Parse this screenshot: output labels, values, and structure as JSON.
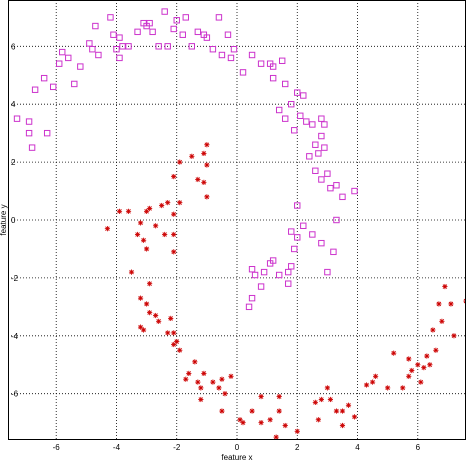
{
  "chart_data": {
    "type": "scatter",
    "xlabel": "feature x",
    "ylabel": "feature y",
    "xlim": [
      -7.6,
      7.6
    ],
    "ylim": [
      -7.6,
      7.6
    ],
    "grid": true,
    "x_ticks": [
      -6,
      -4,
      -2,
      0,
      2,
      4,
      6
    ],
    "y_ticks": [
      -6,
      -4,
      -2,
      0,
      2,
      4,
      6
    ],
    "series": [
      {
        "marker": "square",
        "color": "#cc33cc",
        "points": [
          [
            -7.3,
            3.5
          ],
          [
            -6.9,
            3.4
          ],
          [
            -6.9,
            3.0
          ],
          [
            -6.8,
            2.5
          ],
          [
            -6.3,
            3.0
          ],
          [
            -6.7,
            4.5
          ],
          [
            -6.4,
            4.9
          ],
          [
            -6.1,
            4.6
          ],
          [
            -5.9,
            5.4
          ],
          [
            -5.8,
            5.8
          ],
          [
            -5.6,
            5.6
          ],
          [
            -5.4,
            4.7
          ],
          [
            -5.2,
            5.3
          ],
          [
            -4.9,
            6.1
          ],
          [
            -4.8,
            5.9
          ],
          [
            -4.7,
            6.7
          ],
          [
            -4.6,
            5.7
          ],
          [
            -4.2,
            7.0
          ],
          [
            -4.1,
            6.4
          ],
          [
            -3.9,
            6.3
          ],
          [
            -4.0,
            5.9
          ],
          [
            -3.9,
            5.6
          ],
          [
            -3.8,
            6.0
          ],
          [
            -3.6,
            6.0
          ],
          [
            -3.3,
            6.5
          ],
          [
            -3.1,
            6.8
          ],
          [
            -3.0,
            6.7
          ],
          [
            -2.9,
            6.8
          ],
          [
            -2.8,
            6.5
          ],
          [
            -2.6,
            6.0
          ],
          [
            -2.4,
            7.2
          ],
          [
            -2.3,
            6.0
          ],
          [
            -2.1,
            6.6
          ],
          [
            -2.0,
            6.9
          ],
          [
            -1.8,
            6.4
          ],
          [
            -1.7,
            7.0
          ],
          [
            -1.5,
            6.0
          ],
          [
            -1.3,
            6.5
          ],
          [
            -1.1,
            6.4
          ],
          [
            -1.0,
            6.3
          ],
          [
            -0.8,
            5.9
          ],
          [
            -0.6,
            7.0
          ],
          [
            -0.5,
            5.7
          ],
          [
            -0.3,
            6.4
          ],
          [
            -0.2,
            5.6
          ],
          [
            -0.1,
            5.9
          ],
          [
            0.2,
            5.1
          ],
          [
            0.5,
            5.7
          ],
          [
            0.8,
            5.4
          ],
          [
            1.1,
            5.4
          ],
          [
            1.2,
            5.3
          ],
          [
            1.2,
            4.9
          ],
          [
            1.5,
            5.5
          ],
          [
            1.6,
            4.7
          ],
          [
            1.8,
            4.0
          ],
          [
            2.0,
            4.4
          ],
          [
            2.1,
            3.6
          ],
          [
            2.2,
            4.3
          ],
          [
            2.3,
            3.4
          ],
          [
            2.5,
            3.3
          ],
          [
            2.6,
            2.6
          ],
          [
            2.7,
            2.3
          ],
          [
            2.8,
            3.5
          ],
          [
            2.9,
            3.3
          ],
          [
            2.8,
            2.9
          ],
          [
            2.6,
            1.7
          ],
          [
            2.8,
            1.4
          ],
          [
            3.0,
            1.6
          ],
          [
            3.1,
            1.1
          ],
          [
            3.3,
            1.2
          ],
          [
            3.5,
            0.8
          ],
          [
            3.9,
            1.0
          ],
          [
            1.4,
            3.8
          ],
          [
            1.6,
            3.5
          ],
          [
            1.9,
            3.1
          ],
          [
            2.4,
            2.2
          ],
          [
            2.9,
            2.5
          ],
          [
            3.3,
            0.0
          ],
          [
            3.2,
            -1.1
          ],
          [
            2.8,
            -0.8
          ],
          [
            3.0,
            -1.8
          ],
          [
            2.0,
            0.5
          ],
          [
            2.2,
            -0.2
          ],
          [
            2.5,
            -0.5
          ],
          [
            1.8,
            -0.4
          ],
          [
            2.0,
            -0.6
          ],
          [
            1.9,
            -1.0
          ],
          [
            1.8,
            -1.6
          ],
          [
            1.7,
            -1.8
          ],
          [
            1.7,
            -2.2
          ],
          [
            1.4,
            -1.9
          ],
          [
            1.2,
            -1.4
          ],
          [
            1.1,
            -1.5
          ],
          [
            0.9,
            -1.8
          ],
          [
            0.8,
            -2.3
          ],
          [
            0.6,
            -1.9
          ],
          [
            0.5,
            -1.7
          ],
          [
            0.5,
            -2.7
          ],
          [
            0.4,
            -3.0
          ]
        ]
      },
      {
        "marker": "asterisk",
        "color": "#cc0000",
        "points": [
          [
            -1.0,
            2.6
          ],
          [
            -1.1,
            2.3
          ],
          [
            -1.5,
            2.2
          ],
          [
            -1.9,
            2.0
          ],
          [
            -1.0,
            1.9
          ],
          [
            -1.1,
            1.3
          ],
          [
            -1.3,
            1.4
          ],
          [
            -2.1,
            1.5
          ],
          [
            -1.0,
            0.8
          ],
          [
            -1.9,
            0.6
          ],
          [
            -2.3,
            0.6
          ],
          [
            -2.1,
            0.2
          ],
          [
            -2.5,
            0.5
          ],
          [
            -2.9,
            0.4
          ],
          [
            -3.0,
            0.3
          ],
          [
            -3.2,
            -0.1
          ],
          [
            -3.6,
            0.3
          ],
          [
            -3.9,
            0.3
          ],
          [
            -2.7,
            -0.2
          ],
          [
            -3.3,
            -0.5
          ],
          [
            -2.4,
            -0.5
          ],
          [
            -2.1,
            -0.5
          ],
          [
            -4.3,
            -0.3
          ],
          [
            -3.1,
            -0.7
          ],
          [
            -3.0,
            -1.0
          ],
          [
            -2.1,
            -1.1
          ],
          [
            -3.5,
            -1.8
          ],
          [
            -2.9,
            -2.2
          ],
          [
            -3.2,
            -2.7
          ],
          [
            -3.0,
            -2.9
          ],
          [
            -2.9,
            -3.2
          ],
          [
            -2.7,
            -3.3
          ],
          [
            -2.6,
            -3.5
          ],
          [
            -2.2,
            -3.4
          ],
          [
            -2.3,
            -3.9
          ],
          [
            -2.1,
            -3.9
          ],
          [
            -2.0,
            -4.2
          ],
          [
            -2.1,
            -4.3
          ],
          [
            -1.9,
            -4.5
          ],
          [
            -3.2,
            -3.7
          ],
          [
            -3.1,
            -3.8
          ],
          [
            -1.4,
            -4.9
          ],
          [
            -1.6,
            -5.3
          ],
          [
            -1.7,
            -5.5
          ],
          [
            -1.3,
            -5.6
          ],
          [
            -1.1,
            -5.3
          ],
          [
            -1.2,
            -5.8
          ],
          [
            -0.8,
            -5.6
          ],
          [
            -0.5,
            -5.5
          ],
          [
            -0.6,
            -5.8
          ],
          [
            -0.2,
            -5.4
          ],
          [
            -0.4,
            -6.0
          ],
          [
            -1.2,
            -6.2
          ],
          [
            -0.5,
            -6.6
          ],
          [
            0.8,
            -6.1
          ],
          [
            0.1,
            -6.9
          ],
          [
            0.2,
            -7.0
          ],
          [
            0.8,
            -7.0
          ],
          [
            1.1,
            -6.9
          ],
          [
            1.4,
            -6.1
          ],
          [
            1.4,
            -6.6
          ],
          [
            1.6,
            -7.1
          ],
          [
            1.3,
            -7.5
          ],
          [
            2.0,
            -7.3
          ],
          [
            2.6,
            -6.3
          ],
          [
            2.7,
            -6.9
          ],
          [
            2.8,
            -6.2
          ],
          [
            3.0,
            -5.8
          ],
          [
            3.1,
            -6.2
          ],
          [
            3.3,
            -6.6
          ],
          [
            3.5,
            -6.6
          ],
          [
            3.7,
            -6.4
          ],
          [
            3.5,
            -7.1
          ],
          [
            3.9,
            -6.8
          ],
          [
            4.3,
            -5.7
          ],
          [
            4.5,
            -5.6
          ],
          [
            4.6,
            -5.4
          ],
          [
            5.0,
            -5.8
          ],
          [
            5.2,
            -4.6
          ],
          [
            5.5,
            -5.8
          ],
          [
            5.7,
            -5.4
          ],
          [
            5.8,
            -5.2
          ],
          [
            6.0,
            -5.0
          ],
          [
            6.1,
            -5.6
          ],
          [
            6.2,
            -5.1
          ],
          [
            6.3,
            -4.7
          ],
          [
            6.4,
            -5.0
          ],
          [
            6.5,
            -3.8
          ],
          [
            6.6,
            -4.5
          ],
          [
            6.7,
            -2.9
          ],
          [
            6.8,
            -3.5
          ],
          [
            7.1,
            -2.9
          ],
          [
            7.2,
            -4.0
          ],
          [
            7.6,
            -2.8
          ],
          [
            6.9,
            -2.3
          ],
          [
            5.7,
            -4.8
          ],
          [
            0.5,
            -6.6
          ]
        ]
      }
    ]
  }
}
